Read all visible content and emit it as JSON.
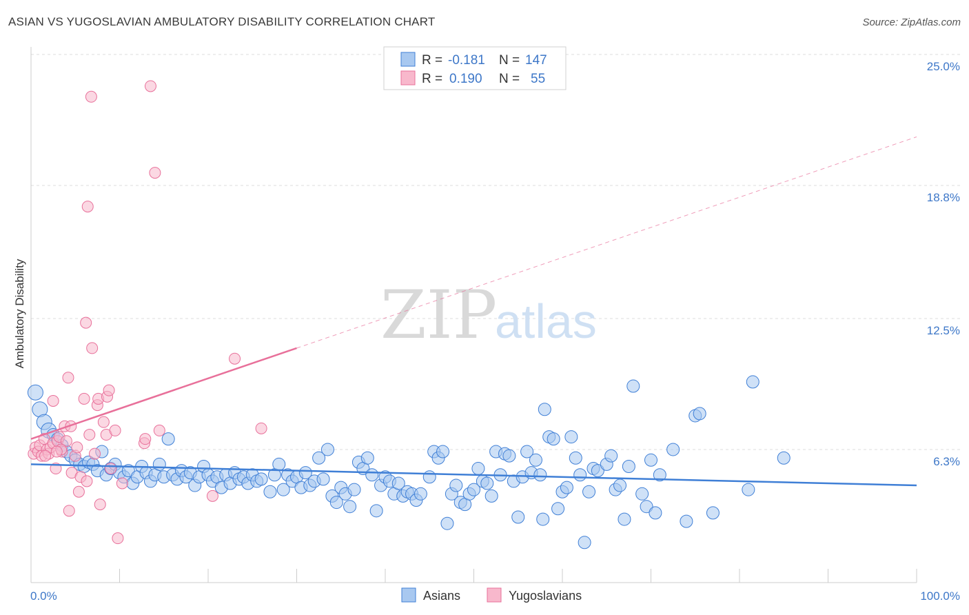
{
  "header": {
    "title": "ASIAN VS YUGOSLAVIAN AMBULATORY DISABILITY CORRELATION CHART",
    "source": "Source: ZipAtlas.com"
  },
  "watermark": {
    "zip": "ZIP",
    "atlas": "atlas"
  },
  "legend": {
    "rows": [
      {
        "r_label": "R =",
        "r_value": "-0.181",
        "n_label": "N =",
        "n_value": "147",
        "color": "#a8c8f0"
      },
      {
        "r_label": "R =",
        "r_value": "0.190",
        "n_label": "N =",
        "n_value": "55",
        "color": "#f8b8cc"
      }
    ]
  },
  "bottom_legend": {
    "asians": "Asians",
    "yugoslavians": "Yugoslavians"
  },
  "chart_data": {
    "type": "scatter",
    "title": "ASIAN VS YUGOSLAVIAN AMBULATORY DISABILITY CORRELATION CHART",
    "ylabel": "Ambulatory Disability",
    "xlim": [
      0,
      100
    ],
    "ylim": [
      0,
      25
    ],
    "x_tick_labels": [
      "0.0%",
      "100.0%"
    ],
    "y_ticks": [
      6.3,
      12.5,
      18.8,
      25.0
    ],
    "y_tick_labels": [
      "6.3%",
      "12.5%",
      "18.8%",
      "25.0%"
    ],
    "grid": true,
    "legend_position": "top-center",
    "colors": {
      "asians": "#3f7fd6",
      "asians_fill": "#a8c8f0",
      "yugoslavians": "#e8709a",
      "yugoslavians_fill": "#f8b8cc"
    },
    "series": [
      {
        "name": "Asians",
        "trend": {
          "x": [
            0,
            100
          ],
          "y": [
            5.6,
            4.6
          ]
        },
        "points": [
          [
            0.5,
            9.0
          ],
          [
            1,
            8.2
          ],
          [
            1.5,
            7.6
          ],
          [
            2,
            7.2
          ],
          [
            2.5,
            7.0
          ],
          [
            3,
            6.8
          ],
          [
            3.5,
            6.5
          ],
          [
            4,
            6.2
          ],
          [
            4.5,
            6.0
          ],
          [
            5,
            5.8
          ],
          [
            5.5,
            5.6
          ],
          [
            6,
            5.5
          ],
          [
            6.5,
            5.7
          ],
          [
            7,
            5.6
          ],
          [
            7.5,
            5.3
          ],
          [
            8,
            6.2
          ],
          [
            8.5,
            5.1
          ],
          [
            9,
            5.4
          ],
          [
            9.5,
            5.6
          ],
          [
            10,
            5.2
          ],
          [
            10.5,
            5.0
          ],
          [
            11,
            5.3
          ],
          [
            11.5,
            4.7
          ],
          [
            12,
            5.0
          ],
          [
            12.5,
            5.5
          ],
          [
            13,
            5.2
          ],
          [
            13.5,
            4.8
          ],
          [
            14,
            5.1
          ],
          [
            14.5,
            5.6
          ],
          [
            15,
            5.0
          ],
          [
            15.5,
            6.8
          ],
          [
            16,
            5.1
          ],
          [
            16.5,
            4.9
          ],
          [
            17,
            5.3
          ],
          [
            17.5,
            5.0
          ],
          [
            18,
            5.2
          ],
          [
            18.5,
            4.6
          ],
          [
            19,
            5.0
          ],
          [
            19.5,
            5.5
          ],
          [
            20,
            5.1
          ],
          [
            20.5,
            4.8
          ],
          [
            21,
            5.0
          ],
          [
            21.5,
            4.5
          ],
          [
            22,
            5.1
          ],
          [
            22.5,
            4.7
          ],
          [
            23,
            5.2
          ],
          [
            23.5,
            4.9
          ],
          [
            24,
            5.0
          ],
          [
            24.5,
            4.7
          ],
          [
            25,
            5.1
          ],
          [
            25.5,
            4.8
          ],
          [
            26,
            4.9
          ],
          [
            27,
            4.3
          ],
          [
            27.5,
            5.1
          ],
          [
            28,
            5.6
          ],
          [
            28.5,
            4.4
          ],
          [
            29,
            5.1
          ],
          [
            29.5,
            4.8
          ],
          [
            30,
            5.0
          ],
          [
            30.5,
            4.5
          ],
          [
            31,
            5.2
          ],
          [
            31.5,
            4.6
          ],
          [
            32,
            4.8
          ],
          [
            32.5,
            5.9
          ],
          [
            33,
            4.9
          ],
          [
            33.5,
            6.3
          ],
          [
            34,
            4.1
          ],
          [
            34.5,
            3.8
          ],
          [
            35,
            4.5
          ],
          [
            35.5,
            4.2
          ],
          [
            36,
            3.6
          ],
          [
            36.5,
            4.4
          ],
          [
            37,
            5.7
          ],
          [
            37.5,
            5.4
          ],
          [
            38,
            5.9
          ],
          [
            38.5,
            5.1
          ],
          [
            39,
            3.4
          ],
          [
            39.5,
            4.6
          ],
          [
            40,
            5.0
          ],
          [
            40.5,
            4.8
          ],
          [
            41,
            4.2
          ],
          [
            41.5,
            4.7
          ],
          [
            42,
            4.1
          ],
          [
            42.5,
            4.3
          ],
          [
            43,
            4.2
          ],
          [
            43.5,
            3.9
          ],
          [
            44,
            4.2
          ],
          [
            45,
            5.0
          ],
          [
            45.5,
            6.2
          ],
          [
            46,
            5.9
          ],
          [
            46.5,
            6.2
          ],
          [
            47,
            2.8
          ],
          [
            47.5,
            4.2
          ],
          [
            48,
            4.6
          ],
          [
            48.5,
            3.8
          ],
          [
            49,
            3.7
          ],
          [
            49.5,
            4.2
          ],
          [
            50,
            4.4
          ],
          [
            50.5,
            5.4
          ],
          [
            51,
            4.8
          ],
          [
            51.5,
            4.7
          ],
          [
            52,
            4.1
          ],
          [
            52.5,
            6.2
          ],
          [
            53,
            5.1
          ],
          [
            53.5,
            6.1
          ],
          [
            54,
            6.0
          ],
          [
            54.5,
            4.8
          ],
          [
            55,
            3.1
          ],
          [
            55.5,
            5.0
          ],
          [
            56,
            6.2
          ],
          [
            56.5,
            5.2
          ],
          [
            57,
            5.8
          ],
          [
            57.5,
            5.1
          ],
          [
            57.8,
            3.0
          ],
          [
            58,
            8.2
          ],
          [
            58.5,
            6.9
          ],
          [
            59,
            6.8
          ],
          [
            59.5,
            3.5
          ],
          [
            60,
            4.3
          ],
          [
            60.5,
            4.5
          ],
          [
            61,
            6.9
          ],
          [
            61.5,
            5.9
          ],
          [
            62,
            5.1
          ],
          [
            62.5,
            1.9
          ],
          [
            63,
            4.3
          ],
          [
            63.5,
            5.4
          ],
          [
            64,
            5.3
          ],
          [
            65,
            5.6
          ],
          [
            65.5,
            6.0
          ],
          [
            66,
            4.4
          ],
          [
            66.5,
            4.6
          ],
          [
            67,
            3.0
          ],
          [
            67.5,
            5.5
          ],
          [
            68,
            9.3
          ],
          [
            69,
            4.2
          ],
          [
            69.5,
            3.6
          ],
          [
            70,
            5.8
          ],
          [
            70.5,
            3.3
          ],
          [
            71,
            5.1
          ],
          [
            72.5,
            6.3
          ],
          [
            74,
            2.9
          ],
          [
            75,
            7.9
          ],
          [
            77,
            3.3
          ],
          [
            81,
            4.4
          ],
          [
            81.5,
            9.5
          ],
          [
            85,
            5.9
          ],
          [
            75.5,
            8.0
          ]
        ]
      },
      {
        "name": "Yugoslavians",
        "trend": {
          "x": [
            0,
            30
          ],
          "y": [
            6.8,
            11.1
          ]
        },
        "trend_extended": {
          "x": [
            30,
            100
          ],
          "y": [
            11.1,
            21.1
          ]
        },
        "points": [
          [
            0.3,
            6.1
          ],
          [
            0.5,
            6.4
          ],
          [
            0.8,
            6.2
          ],
          [
            1,
            6.5
          ],
          [
            1.2,
            6.0
          ],
          [
            1.5,
            6.8
          ],
          [
            1.8,
            6.3
          ],
          [
            2,
            6.1
          ],
          [
            2.2,
            6.4
          ],
          [
            2.5,
            6.6
          ],
          [
            2.5,
            8.6
          ],
          [
            2.8,
            5.4
          ],
          [
            3,
            6.7
          ],
          [
            3.2,
            6.9
          ],
          [
            3.5,
            6.2
          ],
          [
            3.8,
            7.4
          ],
          [
            4,
            6.7
          ],
          [
            4.2,
            9.7
          ],
          [
            4.3,
            3.4
          ],
          [
            4.5,
            7.4
          ],
          [
            4.6,
            5.2
          ],
          [
            5,
            6.0
          ],
          [
            5.2,
            6.4
          ],
          [
            5.4,
            4.3
          ],
          [
            5.6,
            5.0
          ],
          [
            6,
            8.7
          ],
          [
            6.2,
            12.3
          ],
          [
            6.4,
            17.8
          ],
          [
            6.6,
            7.0
          ],
          [
            6.8,
            23.0
          ],
          [
            6.9,
            11.1
          ],
          [
            7.2,
            6.1
          ],
          [
            7.5,
            8.4
          ],
          [
            7.6,
            8.7
          ],
          [
            7.8,
            3.7
          ],
          [
            8.2,
            7.6
          ],
          [
            8.5,
            7.0
          ],
          [
            8.6,
            8.8
          ],
          [
            8.8,
            9.1
          ],
          [
            9,
            5.4
          ],
          [
            9.5,
            7.2
          ],
          [
            9.8,
            2.1
          ],
          [
            10.3,
            4.7
          ],
          [
            12.8,
            6.6
          ],
          [
            12.9,
            6.8
          ],
          [
            13.5,
            23.5
          ],
          [
            14,
            19.4
          ],
          [
            14.5,
            7.2
          ],
          [
            20.5,
            4.1
          ],
          [
            23,
            10.6
          ],
          [
            26,
            7.3
          ],
          [
            6.3,
            4.8
          ],
          [
            3.4,
            6.3
          ],
          [
            1.6,
            6.0
          ],
          [
            2.9,
            6.2
          ]
        ]
      }
    ]
  }
}
